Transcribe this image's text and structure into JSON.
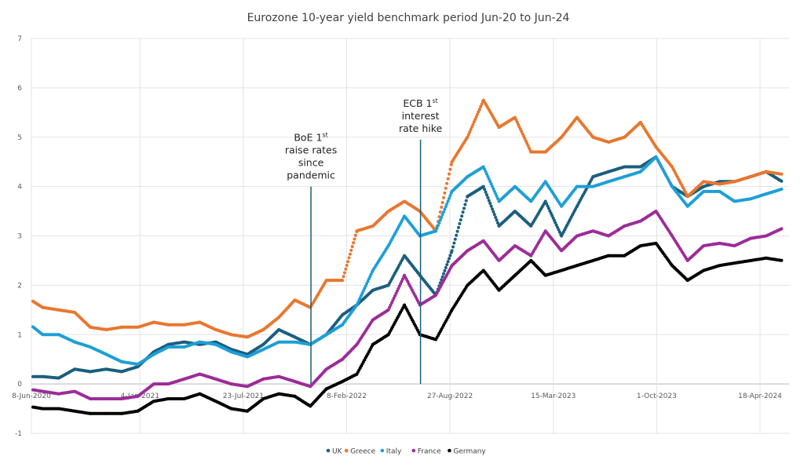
{
  "chart_data": {
    "type": "scatter",
    "title": "Eurozone 10-year yield benchmark period Jun-20 to Jun-24",
    "xlabel": "",
    "ylabel": "",
    "ylim": [
      -1,
      7
    ],
    "yticks": [
      "-1",
      "0",
      "1",
      "2",
      "3",
      "4",
      "5",
      "6",
      "7"
    ],
    "xlim": [
      "2020-06-08",
      "2024-06-20"
    ],
    "xticks": [
      {
        "date": "2020-06-08",
        "label": "8-Jun-2020"
      },
      {
        "date": "2021-01-04",
        "label": "4-Jan-2021"
      },
      {
        "date": "2021-07-23",
        "label": "23-Jul-2021"
      },
      {
        "date": "2022-02-08",
        "label": "8-Feb-2022"
      },
      {
        "date": "2022-08-27",
        "label": "27-Aug-2022"
      },
      {
        "date": "2023-03-15",
        "label": "15-Mar-2023"
      },
      {
        "date": "2023-10-01",
        "label": "1-Oct-2023"
      },
      {
        "date": "2024-04-18",
        "label": "18-Apr-2024"
      }
    ],
    "grid": true,
    "legend_position": "bottom",
    "x_months": [
      "2020-06",
      "2020-07",
      "2020-08",
      "2020-09",
      "2020-10",
      "2020-11",
      "2020-12",
      "2021-01",
      "2021-02",
      "2021-03",
      "2021-04",
      "2021-05",
      "2021-06",
      "2021-07",
      "2021-08",
      "2021-09",
      "2021-10",
      "2021-11",
      "2021-12",
      "2022-01",
      "2022-02",
      "2022-03",
      "2022-04",
      "2022-05",
      "2022-06",
      "2022-07",
      "2022-08",
      "2022-09",
      "2022-10",
      "2022-11",
      "2022-12",
      "2023-01",
      "2023-02",
      "2023-03",
      "2023-04",
      "2023-05",
      "2023-06",
      "2023-07",
      "2023-08",
      "2023-09",
      "2023-10",
      "2023-11",
      "2023-12",
      "2024-01",
      "2024-02",
      "2024-03",
      "2024-04",
      "2024-05",
      "2024-06"
    ],
    "series": [
      {
        "name": "UK",
        "color": "#1b5e7e",
        "values": [
          0.15,
          0.15,
          0.12,
          0.3,
          0.25,
          0.3,
          0.25,
          0.35,
          0.65,
          0.8,
          0.85,
          0.8,
          0.85,
          0.7,
          0.6,
          0.8,
          1.1,
          0.95,
          0.8,
          1.0,
          1.4,
          1.6,
          1.9,
          2.0,
          2.6,
          2.2,
          1.8,
          2.7,
          3.8,
          4.0,
          3.2,
          3.5,
          3.2,
          3.7,
          3.0,
          3.6,
          4.2,
          4.3,
          4.4,
          4.4,
          4.6,
          4.0,
          3.8,
          4.0,
          4.1,
          4.1,
          4.2,
          4.3,
          4.1
        ]
      },
      {
        "name": "Greece",
        "color": "#e8772e",
        "values": [
          1.75,
          1.55,
          1.5,
          1.45,
          1.15,
          1.1,
          1.15,
          1.15,
          1.25,
          1.2,
          1.2,
          1.25,
          1.1,
          1.0,
          0.95,
          1.1,
          1.35,
          1.7,
          1.55,
          2.1,
          2.1,
          3.1,
          3.2,
          3.5,
          3.7,
          3.5,
          3.1,
          4.5,
          5.0,
          5.75,
          5.2,
          5.4,
          4.7,
          4.7,
          5.0,
          5.4,
          5.0,
          4.9,
          5.0,
          5.3,
          4.8,
          4.4,
          3.8,
          4.1,
          4.05,
          4.1,
          4.2,
          4.3,
          4.25
        ]
      },
      {
        "name": "Italy",
        "color": "#1e9fd6",
        "values": [
          1.25,
          1.0,
          1.0,
          0.85,
          0.75,
          0.6,
          0.45,
          0.4,
          0.6,
          0.75,
          0.75,
          0.85,
          0.8,
          0.65,
          0.55,
          0.7,
          0.85,
          0.85,
          0.8,
          1.0,
          1.2,
          1.6,
          2.3,
          2.8,
          3.4,
          3.0,
          3.1,
          3.9,
          4.2,
          4.4,
          3.7,
          4.0,
          3.7,
          4.1,
          3.6,
          4.0,
          4.0,
          4.1,
          4.2,
          4.3,
          4.6,
          4.0,
          3.6,
          3.9,
          3.9,
          3.7,
          3.75,
          3.85,
          3.95
        ]
      },
      {
        "name": "France",
        "color": "#9c2c98",
        "values": [
          -0.1,
          -0.15,
          -0.2,
          -0.15,
          -0.3,
          -0.3,
          -0.3,
          -0.25,
          0.0,
          0.0,
          0.1,
          0.2,
          0.1,
          0.0,
          -0.05,
          0.1,
          0.15,
          0.05,
          -0.05,
          0.3,
          0.5,
          0.8,
          1.3,
          1.5,
          2.2,
          1.6,
          1.8,
          2.4,
          2.7,
          2.9,
          2.5,
          2.8,
          2.6,
          3.1,
          2.7,
          3.0,
          3.1,
          3.0,
          3.2,
          3.3,
          3.5,
          3.0,
          2.5,
          2.8,
          2.85,
          2.8,
          2.95,
          3.0,
          3.15
        ]
      },
      {
        "name": "Germany",
        "color": "#000000",
        "values": [
          -0.45,
          -0.5,
          -0.5,
          -0.55,
          -0.6,
          -0.6,
          -0.6,
          -0.55,
          -0.35,
          -0.3,
          -0.3,
          -0.2,
          -0.35,
          -0.5,
          -0.55,
          -0.3,
          -0.2,
          -0.25,
          -0.45,
          -0.1,
          0.05,
          0.2,
          0.8,
          1.0,
          1.6,
          1.0,
          0.9,
          1.5,
          2.0,
          2.3,
          1.9,
          2.2,
          2.5,
          2.2,
          2.3,
          2.4,
          2.5,
          2.6,
          2.6,
          2.8,
          2.85,
          2.4,
          2.1,
          2.3,
          2.4,
          2.45,
          2.5,
          2.55,
          2.5
        ]
      }
    ],
    "annotations": [
      {
        "id": "boe",
        "date": "2021-12-01",
        "lines": [
          "BoE 1",
          "raise rates",
          "since",
          "pandemic"
        ],
        "sup": "st",
        "color": "#1b5e7e",
        "top_value": 4
      },
      {
        "id": "ecb",
        "date": "2022-07-01",
        "lines": [
          "ECB 1",
          "interest",
          "rate hike"
        ],
        "sup": "st",
        "color": "#1b5e7e",
        "top_value": 4.95
      }
    ]
  }
}
